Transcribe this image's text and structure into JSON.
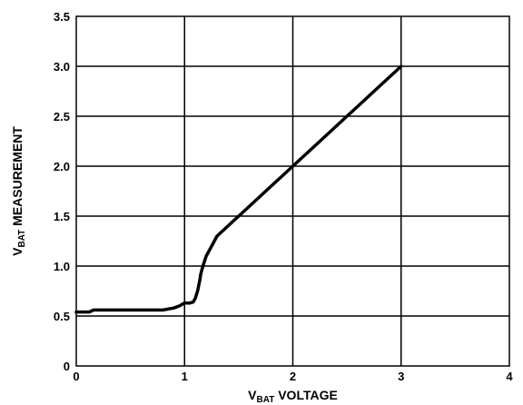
{
  "chart_data": {
    "type": "line",
    "xlabel": {
      "main": "V",
      "sub": "BAT",
      "rest": " VOLTAGE"
    },
    "ylabel": {
      "main": "V",
      "sub": "BAT",
      "rest": " MEASUREMENT"
    },
    "xlim": [
      0,
      4
    ],
    "ylim": [
      0,
      3.5
    ],
    "x_ticks": [
      0,
      1,
      2,
      3,
      4
    ],
    "x_tick_labels": [
      "0",
      "1",
      "2",
      "3",
      "4"
    ],
    "y_ticks": [
      0,
      0.5,
      1.0,
      1.5,
      2.0,
      2.5,
      3.0,
      3.5
    ],
    "y_tick_labels": [
      "0",
      "0.5",
      "1.0",
      "1.5",
      "2.0",
      "2.5",
      "3.0",
      "3.5"
    ],
    "grid": true,
    "series": [
      {
        "color": "#000000",
        "x": [
          0,
          0.12,
          0.16,
          0.3,
          0.5,
          0.7,
          0.8,
          0.9,
          0.95,
          1.0,
          1.05,
          1.08,
          1.1,
          1.12,
          1.14,
          1.15,
          1.17,
          1.2,
          1.25,
          1.3,
          1.4,
          1.5,
          1.6,
          1.7,
          1.8,
          1.9,
          2.0,
          2.1,
          2.2,
          2.3,
          2.4,
          2.5,
          2.6,
          2.7,
          2.8,
          2.9,
          3.0
        ],
        "y": [
          0.54,
          0.54,
          0.56,
          0.56,
          0.56,
          0.56,
          0.56,
          0.58,
          0.6,
          0.63,
          0.63,
          0.64,
          0.68,
          0.75,
          0.85,
          0.92,
          1.0,
          1.1,
          1.2,
          1.3,
          1.4,
          1.5,
          1.6,
          1.7,
          1.8,
          1.9,
          2.0,
          2.1,
          2.2,
          2.3,
          2.4,
          2.5,
          2.6,
          2.7,
          2.8,
          2.9,
          3.0
        ]
      }
    ]
  }
}
